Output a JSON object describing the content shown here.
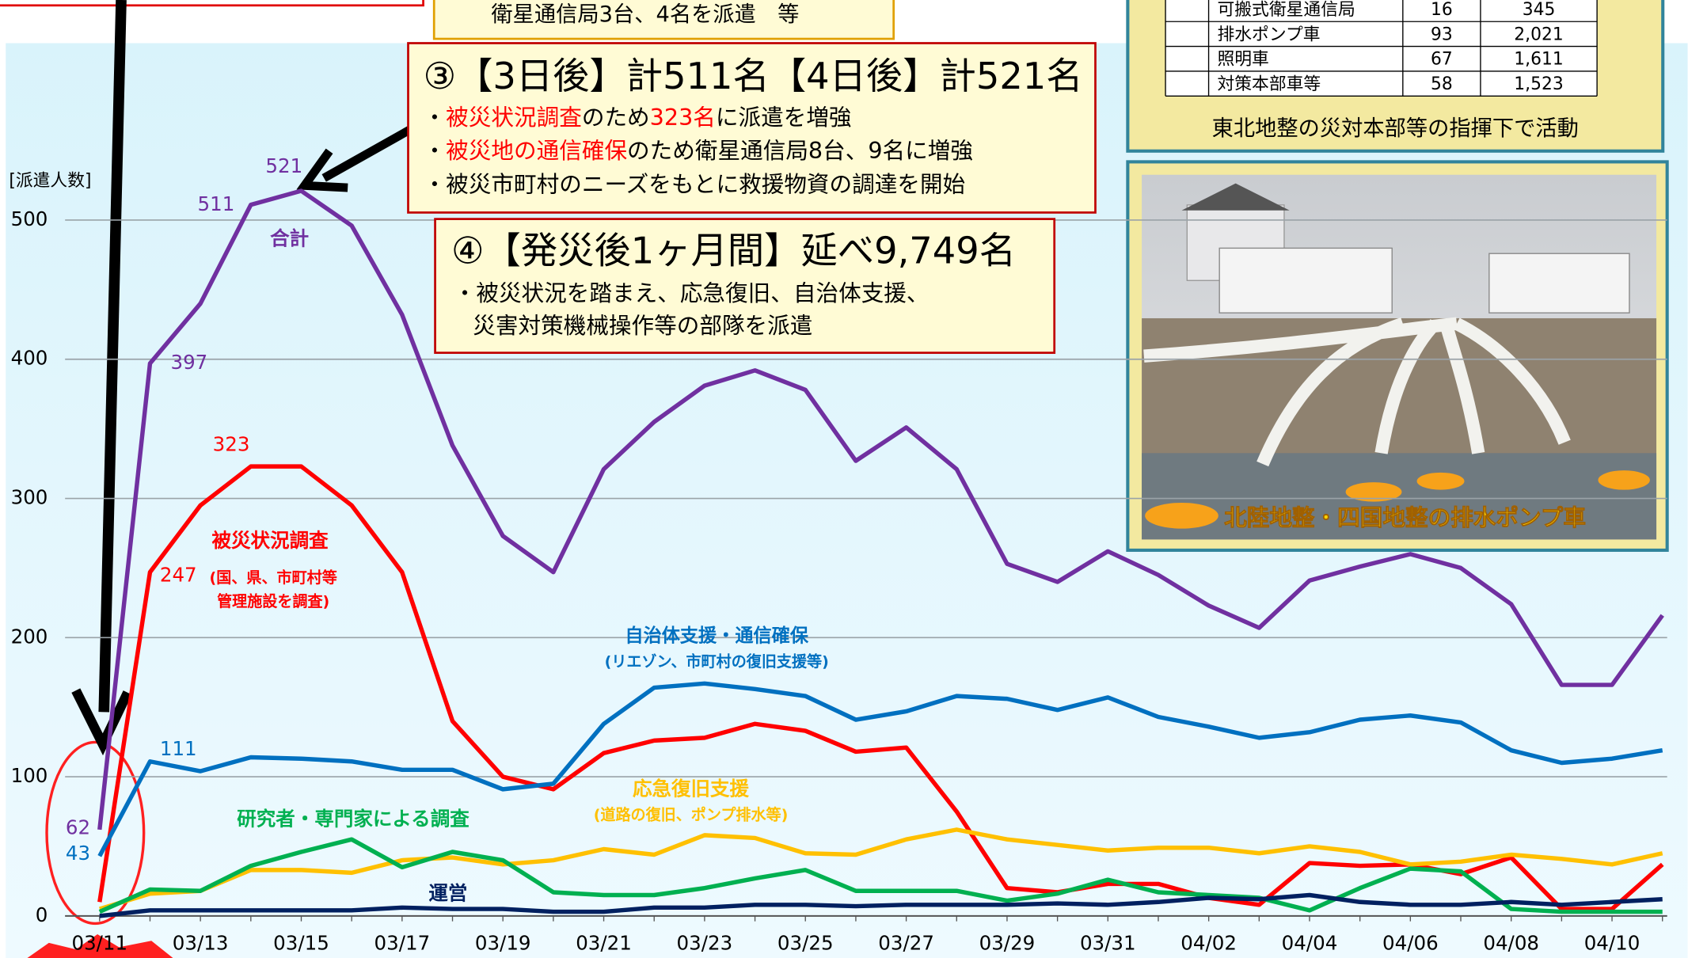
{
  "chart_data": {
    "type": "line",
    "y_label": "[派遣人数]",
    "categories": [
      "03/11",
      null,
      "03/13",
      null,
      "03/15",
      null,
      "03/17",
      null,
      "03/19",
      null,
      "03/21",
      null,
      "03/23",
      null,
      "03/25",
      null,
      "03/27",
      null,
      "03/29",
      null,
      "03/31",
      null,
      "04/02",
      null,
      "04/04",
      null,
      "04/06",
      null,
      "04/08",
      null,
      "04/10",
      null
    ],
    "ylim": [
      0,
      550
    ],
    "yticks": [
      0,
      100,
      200,
      300,
      400,
      500
    ],
    "grid": true,
    "series": [
      {
        "name": "合計",
        "color": "#7030a0",
        "values": [
          62,
          397,
          440,
          511,
          521,
          496,
          432,
          338,
          273,
          247,
          321,
          355,
          381,
          392,
          378,
          327,
          351,
          321,
          253,
          240,
          262,
          245,
          223,
          207,
          241,
          251,
          260,
          250,
          224,
          166,
          166,
          216
        ]
      },
      {
        "name": "被災状況調査",
        "note": [
          "(国、県、市町村等",
          "管理施設を調査)"
        ],
        "color": "#ff0000",
        "values": [
          10,
          247,
          295,
          323,
          323,
          295,
          247,
          140,
          100,
          91,
          117,
          126,
          128,
          138,
          133,
          118,
          121,
          75,
          20,
          17,
          23,
          23,
          13,
          8,
          38,
          36,
          37,
          30,
          42,
          5,
          5,
          37
        ]
      },
      {
        "name": "自治体支援・通信確保",
        "note": [
          "(リエゾン、市町村の復旧支援等)"
        ],
        "color": "#0070c0",
        "values": [
          43,
          111,
          104,
          114,
          113,
          111,
          105,
          105,
          91,
          95,
          138,
          164,
          167,
          163,
          158,
          141,
          147,
          158,
          156,
          148,
          157,
          143,
          136,
          128,
          132,
          141,
          144,
          139,
          119,
          110,
          113,
          119
        ]
      },
      {
        "name": "応急復旧支援",
        "note": [
          "(道路の復旧、ポンプ排水等)"
        ],
        "color": "#ffc000",
        "values": [
          5,
          16,
          18,
          33,
          33,
          31,
          40,
          42,
          37,
          40,
          48,
          44,
          58,
          56,
          45,
          44,
          55,
          62,
          55,
          51,
          47,
          49,
          49,
          45,
          50,
          46,
          37,
          39,
          44,
          41,
          37,
          45
        ]
      },
      {
        "name": "研究者・専門家による調査",
        "color": "#00b050",
        "values": [
          3,
          19,
          18,
          36,
          46,
          55,
          35,
          46,
          40,
          17,
          15,
          15,
          20,
          27,
          33,
          18,
          18,
          18,
          11,
          16,
          26,
          17,
          15,
          13,
          4,
          20,
          34,
          32,
          5,
          3,
          3,
          3
        ]
      },
      {
        "name": "運営",
        "color": "#002060",
        "values": [
          0,
          4,
          4,
          4,
          4,
          4,
          6,
          5,
          5,
          3,
          3,
          6,
          6,
          8,
          8,
          7,
          8,
          8,
          8,
          9,
          8,
          10,
          13,
          12,
          15,
          10,
          8,
          8,
          10,
          8,
          10,
          12
        ]
      }
    ]
  },
  "callouts": [
    {
      "lines": [
        [
          {
            "text": "衛星通信局3台、4名を派遣　等"
          }
        ]
      ]
    },
    {
      "title": "③【3日後】計511名【4日後】計521名",
      "lines": [
        [
          {
            "text": "・"
          },
          {
            "text": "被災状況調査",
            "color": "#ff0000"
          },
          {
            "text": "のため"
          },
          {
            "text": "323名",
            "color": "#ff0000"
          },
          {
            "text": "に派遣を増強"
          }
        ],
        [
          {
            "text": "・"
          },
          {
            "text": "被災地の通信確保",
            "color": "#ff0000"
          },
          {
            "text": "のため衛星通信局8台、9名に増強"
          }
        ],
        [
          {
            "text": "・被災市町村のニーズをもとに救援物資の調達を開始"
          }
        ]
      ]
    },
    {
      "title": "④【発災後1ヶ月間】延べ9,749名",
      "lines": [
        [
          {
            "text": "・被災状況を踏まえ、応急復旧、自治体支援、"
          }
        ],
        [
          {
            "text": "災害対策機械操作等の部隊を派遣"
          }
        ]
      ]
    }
  ],
  "table": {
    "rows": [
      [
        "可搬式衛星通信局",
        "16",
        "345"
      ],
      [
        "排水ポンプ車",
        "93",
        "2,021"
      ],
      [
        "照明車",
        "67",
        "1,611"
      ],
      [
        "対策本部車等",
        "58",
        "1,523"
      ]
    ],
    "caption": "東北地整の災対本部等の指揮下で活動"
  },
  "photo": {
    "caption": "北陸地整・四国地整の排水ポンプ車"
  }
}
